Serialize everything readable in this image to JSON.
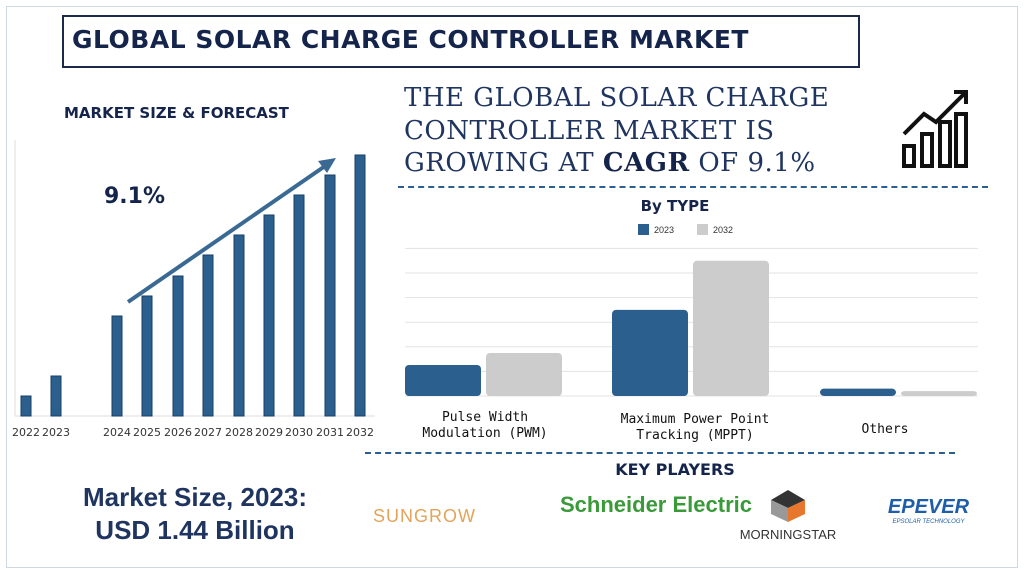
{
  "title": "GLOBAL SOLAR CHARGE CONTROLLER MARKET",
  "market_size_label": "MARKET SIZE & FORECAST",
  "headline": {
    "line1": "THE GLOBAL SOLAR CHARGE",
    "line2": "CONTROLLER MARKET IS",
    "line3_pre": "GROWING AT ",
    "line3_bold": "CAGR",
    "line3_post": " OF 9.1%"
  },
  "growth_icon": "growth-chart-icon",
  "market_size_text": {
    "line1": "Market Size, 2023:",
    "line2": "USD 1.44 Billion"
  },
  "key_players_title": "KEY PLAYERS",
  "key_players": [
    "SUNGROW",
    "Schneider Electric",
    "MORNINGSTAR",
    "EPEVER"
  ],
  "epever_tagline": "EPSOLAR TECHNOLOGY",
  "colors": {
    "navy": "#14244a",
    "bar_blue": "#2a5f8e",
    "bar_gray": "#cccccc"
  },
  "chart_data": [
    {
      "type": "bar",
      "title": "",
      "annotation": "9.1%",
      "categories": [
        "2022",
        "2023",
        "2024",
        "2025",
        "2026",
        "2027",
        "2028",
        "2029",
        "2030",
        "2031",
        "2032"
      ],
      "values": [
        20,
        40,
        100,
        120,
        140,
        161,
        181,
        201,
        221,
        241,
        261
      ],
      "grid": false,
      "note_values": "relative heights, no axis printed"
    },
    {
      "type": "bar",
      "title": "By TYPE",
      "categories": [
        "Pulse Width Modulation (PWM)",
        "Maximum Power Point Tracking (MPPT)",
        "Others"
      ],
      "series": [
        {
          "name": "2023",
          "values": [
            1.26,
            3.5,
            0.3
          ]
        },
        {
          "name": "2032",
          "values": [
            1.75,
            5.5,
            0.2
          ]
        }
      ],
      "ylim": [
        0,
        6
      ],
      "grid": true,
      "legend": "top"
    }
  ]
}
